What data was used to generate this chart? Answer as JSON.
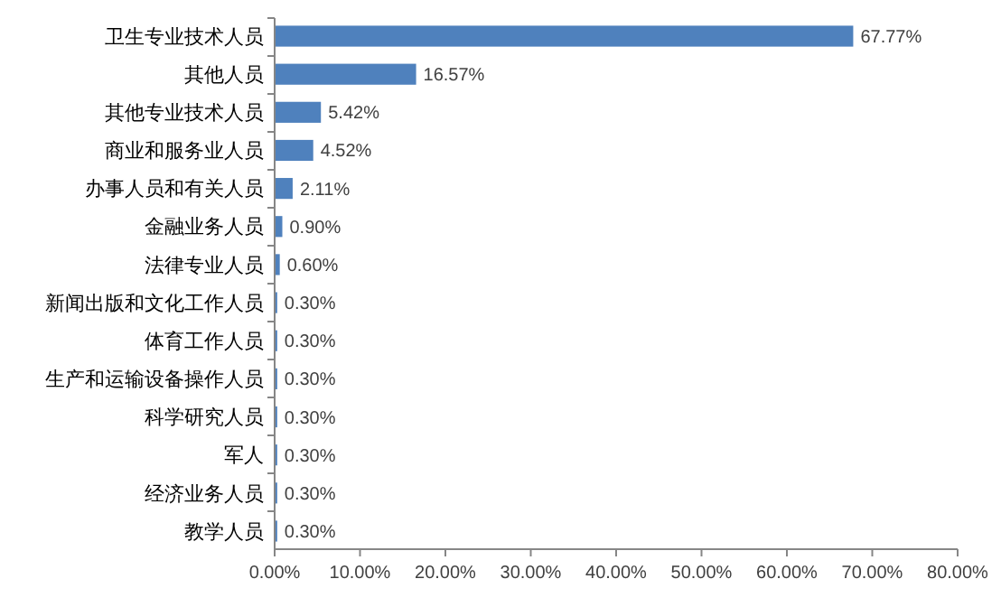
{
  "chart_data": {
    "type": "bar",
    "orientation": "horizontal",
    "categories": [
      "卫生专业技术人员",
      "其他人员",
      "其他专业技术人员",
      "商业和服务业人员",
      "办事人员和有关人员",
      "金融业务人员",
      "法律专业人员",
      "新闻出版和文化工作人员",
      "体育工作人员",
      "生产和运输设备操作人员",
      "科学研究人员",
      "军人",
      "经济业务人员",
      "教学人员"
    ],
    "values": [
      67.77,
      16.57,
      5.42,
      4.52,
      2.11,
      0.9,
      0.6,
      0.3,
      0.3,
      0.3,
      0.3,
      0.3,
      0.3,
      0.3
    ],
    "value_labels": [
      "67.77%",
      "16.57%",
      "5.42%",
      "4.52%",
      "2.11%",
      "0.90%",
      "0.60%",
      "0.30%",
      "0.30%",
      "0.30%",
      "0.30%",
      "0.30%",
      "0.30%",
      "0.30%"
    ],
    "color": "#4f81bd",
    "xlim": [
      0,
      80
    ],
    "xticks": [
      {
        "value": 0,
        "label": "0.00%"
      },
      {
        "value": 10,
        "label": "10.00%"
      },
      {
        "value": 20,
        "label": "20.00%"
      },
      {
        "value": 30,
        "label": "30.00%"
      },
      {
        "value": 40,
        "label": "40.00%"
      },
      {
        "value": 50,
        "label": "50.00%"
      },
      {
        "value": 60,
        "label": "60.00%"
      },
      {
        "value": 70,
        "label": "70.00%"
      },
      {
        "value": 80,
        "label": "80.00%"
      }
    ],
    "grid": false
  }
}
